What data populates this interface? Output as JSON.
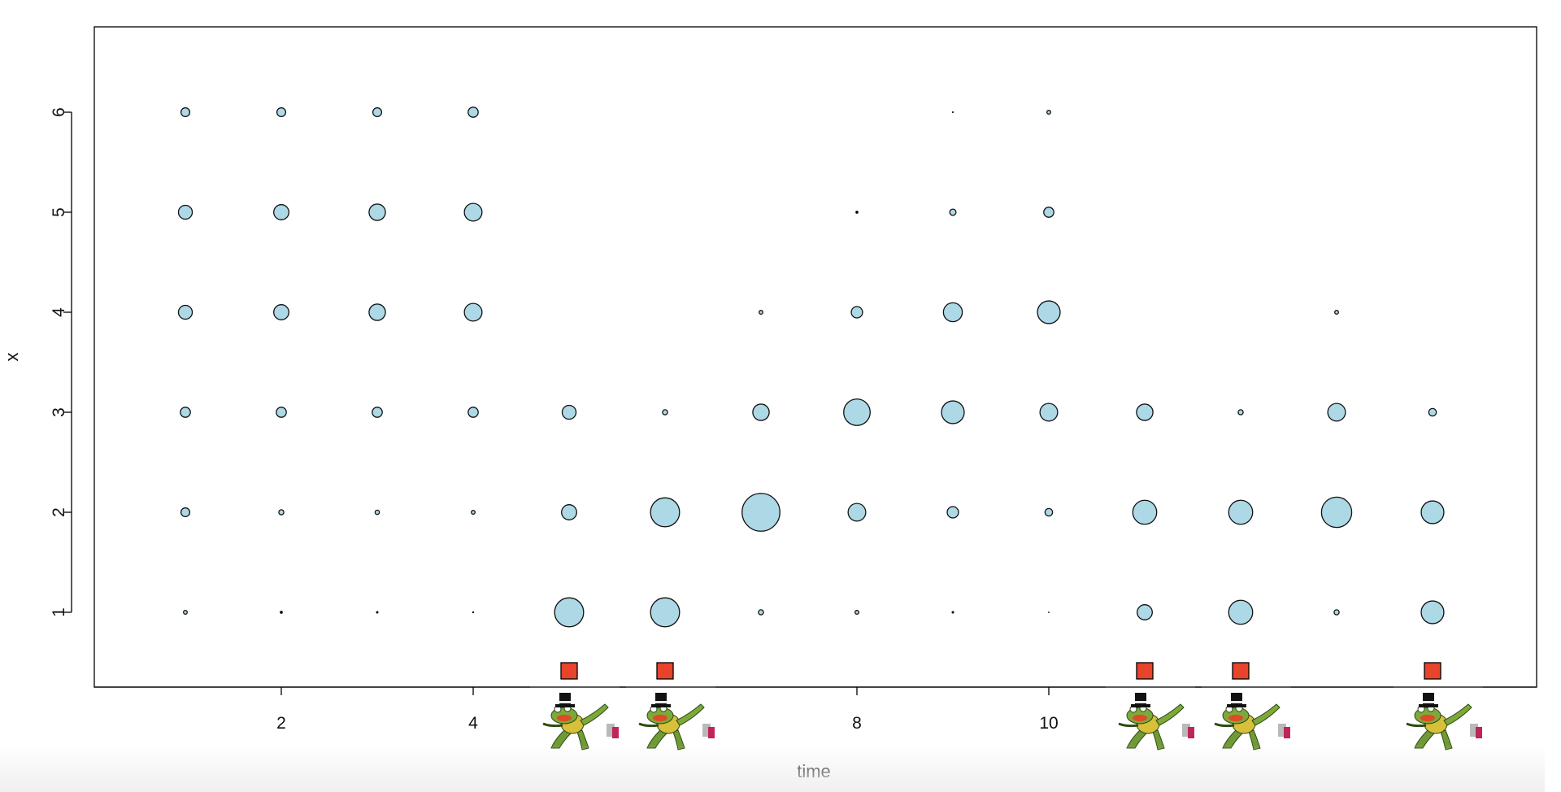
{
  "chart_data": {
    "type": "scatter",
    "xlabel": "time",
    "ylabel": "x",
    "xlim": [
      0.2,
      14.5
    ],
    "ylim": [
      0.25,
      6.85
    ],
    "x_ticks": [
      2,
      4,
      6,
      8,
      10,
      12,
      14
    ],
    "x_tick_labels": [
      "2",
      "4",
      "",
      "8",
      "10",
      "",
      ""
    ],
    "y_ticks": [
      1,
      2,
      3,
      4,
      5,
      6
    ],
    "y_tick_labels": [
      "1",
      "2",
      "3",
      "4",
      "5",
      "6"
    ],
    "grid": false,
    "point_fill": "#add8e6",
    "point_stroke": "#111111",
    "size_encoding": "point radius proportional to value",
    "points": [
      {
        "time": 1,
        "x": 1,
        "size": 0.15
      },
      {
        "time": 1,
        "x": 2,
        "size": 0.35
      },
      {
        "time": 1,
        "x": 3,
        "size": 0.4
      },
      {
        "time": 1,
        "x": 4,
        "size": 0.55
      },
      {
        "time": 1,
        "x": 5,
        "size": 0.55
      },
      {
        "time": 1,
        "x": 6,
        "size": 0.35
      },
      {
        "time": 2,
        "x": 1,
        "size": 0.1
      },
      {
        "time": 2,
        "x": 2,
        "size": 0.2
      },
      {
        "time": 2,
        "x": 3,
        "size": 0.4
      },
      {
        "time": 2,
        "x": 4,
        "size": 0.6
      },
      {
        "time": 2,
        "x": 5,
        "size": 0.6
      },
      {
        "time": 2,
        "x": 6,
        "size": 0.35
      },
      {
        "time": 3,
        "x": 1,
        "size": 0.08
      },
      {
        "time": 3,
        "x": 2,
        "size": 0.17
      },
      {
        "time": 3,
        "x": 3,
        "size": 0.4
      },
      {
        "time": 3,
        "x": 4,
        "size": 0.65
      },
      {
        "time": 3,
        "x": 5,
        "size": 0.65
      },
      {
        "time": 3,
        "x": 6,
        "size": 0.35
      },
      {
        "time": 4,
        "x": 1,
        "size": 0.06
      },
      {
        "time": 4,
        "x": 2,
        "size": 0.15
      },
      {
        "time": 4,
        "x": 3,
        "size": 0.4
      },
      {
        "time": 4,
        "x": 4,
        "size": 0.7
      },
      {
        "time": 4,
        "x": 5,
        "size": 0.7
      },
      {
        "time": 4,
        "x": 6,
        "size": 0.4
      },
      {
        "time": 5,
        "x": 1,
        "size": 1.15
      },
      {
        "time": 5,
        "x": 2,
        "size": 0.6
      },
      {
        "time": 5,
        "x": 3,
        "size": 0.55
      },
      {
        "time": 6,
        "x": 1,
        "size": 1.15
      },
      {
        "time": 6,
        "x": 2,
        "size": 1.15
      },
      {
        "time": 6,
        "x": 3,
        "size": 0.2
      },
      {
        "time": 7,
        "x": 1,
        "size": 0.2
      },
      {
        "time": 7,
        "x": 2,
        "size": 1.5
      },
      {
        "time": 7,
        "x": 3,
        "size": 0.65
      },
      {
        "time": 7,
        "x": 4,
        "size": 0.15
      },
      {
        "time": 8,
        "x": 1,
        "size": 0.15
      },
      {
        "time": 8,
        "x": 2,
        "size": 0.7
      },
      {
        "time": 8,
        "x": 3,
        "size": 1.05
      },
      {
        "time": 8,
        "x": 4,
        "size": 0.45
      },
      {
        "time": 8,
        "x": 5,
        "size": 0.1
      },
      {
        "time": 9,
        "x": 1,
        "size": 0.08
      },
      {
        "time": 9,
        "x": 2,
        "size": 0.45
      },
      {
        "time": 9,
        "x": 3,
        "size": 0.9
      },
      {
        "time": 9,
        "x": 4,
        "size": 0.75
      },
      {
        "time": 9,
        "x": 5,
        "size": 0.25
      },
      {
        "time": 9,
        "x": 6,
        "size": 0.05
      },
      {
        "time": 10,
        "x": 1,
        "size": 0.04
      },
      {
        "time": 10,
        "x": 2,
        "size": 0.3
      },
      {
        "time": 10,
        "x": 3,
        "size": 0.7
      },
      {
        "time": 10,
        "x": 4,
        "size": 0.9
      },
      {
        "time": 10,
        "x": 5,
        "size": 0.4
      },
      {
        "time": 10,
        "x": 6,
        "size": 0.15
      },
      {
        "time": 11,
        "x": 1,
        "size": 0.6
      },
      {
        "time": 11,
        "x": 2,
        "size": 0.95
      },
      {
        "time": 11,
        "x": 3,
        "size": 0.65
      },
      {
        "time": 12,
        "x": 1,
        "size": 0.95
      },
      {
        "time": 12,
        "x": 2,
        "size": 0.95
      },
      {
        "time": 12,
        "x": 3,
        "size": 0.2
      },
      {
        "time": 13,
        "x": 1,
        "size": 0.2
      },
      {
        "time": 13,
        "x": 2,
        "size": 1.2
      },
      {
        "time": 13,
        "x": 3,
        "size": 0.7
      },
      {
        "time": 13,
        "x": 4,
        "size": 0.15
      },
      {
        "time": 14,
        "x": 1,
        "size": 0.9
      },
      {
        "time": 14,
        "x": 2,
        "size": 0.9
      },
      {
        "time": 14,
        "x": 3,
        "size": 0.3
      }
    ],
    "red_squares": {
      "color": "#e8432b",
      "at_time": [
        5,
        6,
        11,
        12,
        14
      ]
    },
    "overlay_icons": {
      "icon": "frog-top-hat-icon",
      "at_time": [
        5,
        6,
        11,
        12,
        14
      ]
    }
  }
}
